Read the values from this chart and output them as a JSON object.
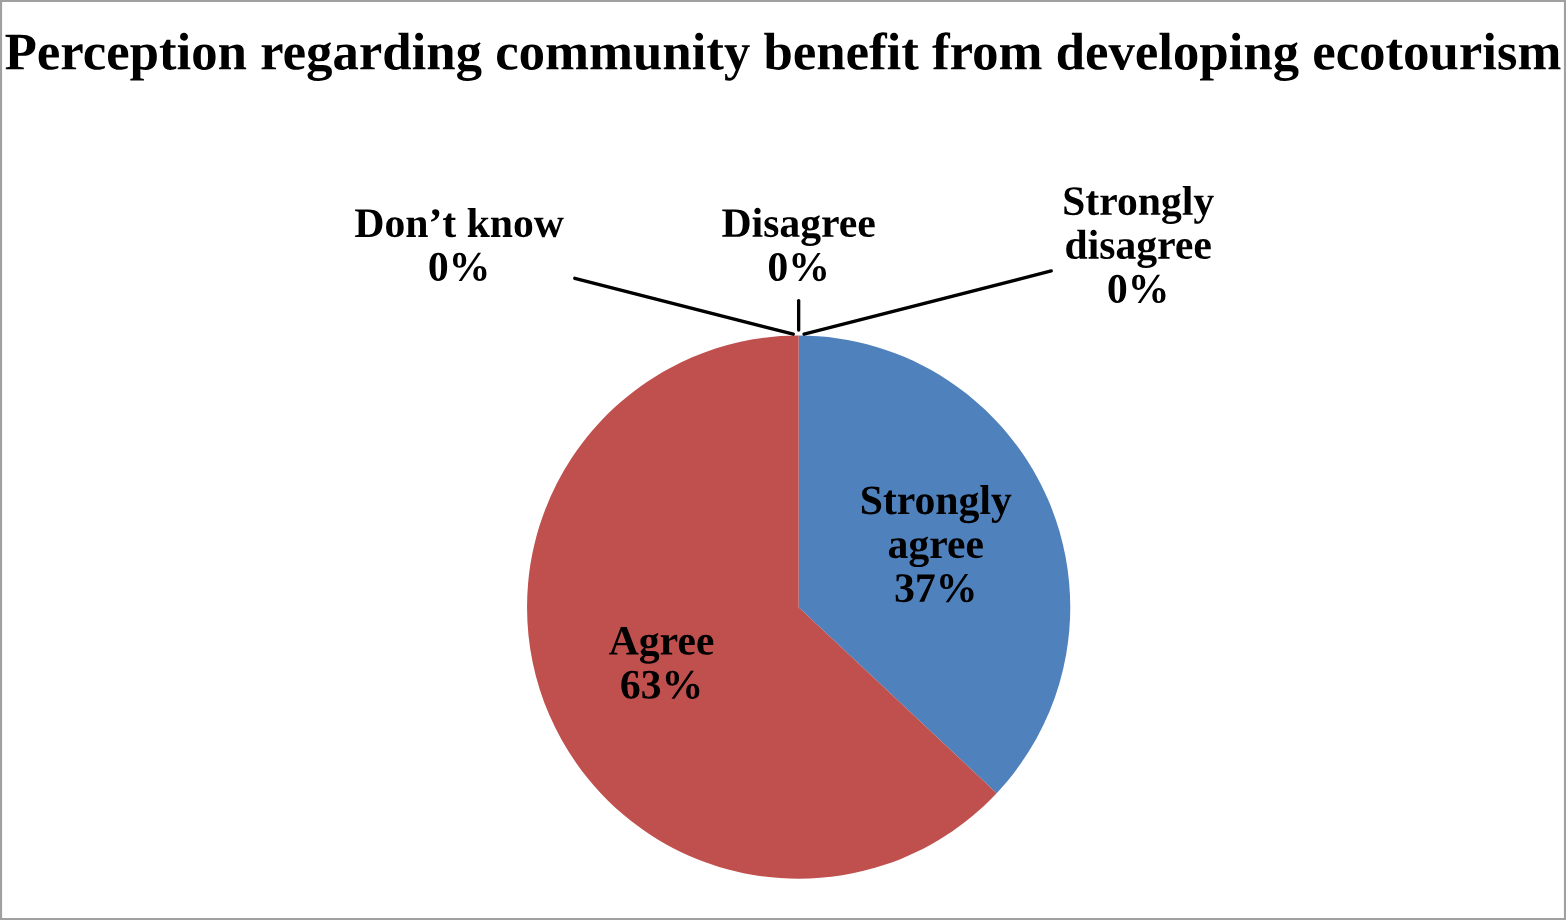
{
  "chart_data": {
    "type": "pie",
    "title": "Perception regarding community benefit from developing ecotourism",
    "categories": [
      "Strongly agree",
      "Agree",
      "Don’t know",
      "Disagree",
      "Strongly disagree"
    ],
    "values": [
      37,
      63,
      0,
      0,
      0
    ],
    "colors": [
      "#4f81bd",
      "#c0504d",
      "#9bbb59",
      "#8064a2",
      "#4bacc6"
    ],
    "value_labels": [
      "37%",
      "63%",
      "0%",
      "0%",
      "0%"
    ],
    "legend": false
  }
}
